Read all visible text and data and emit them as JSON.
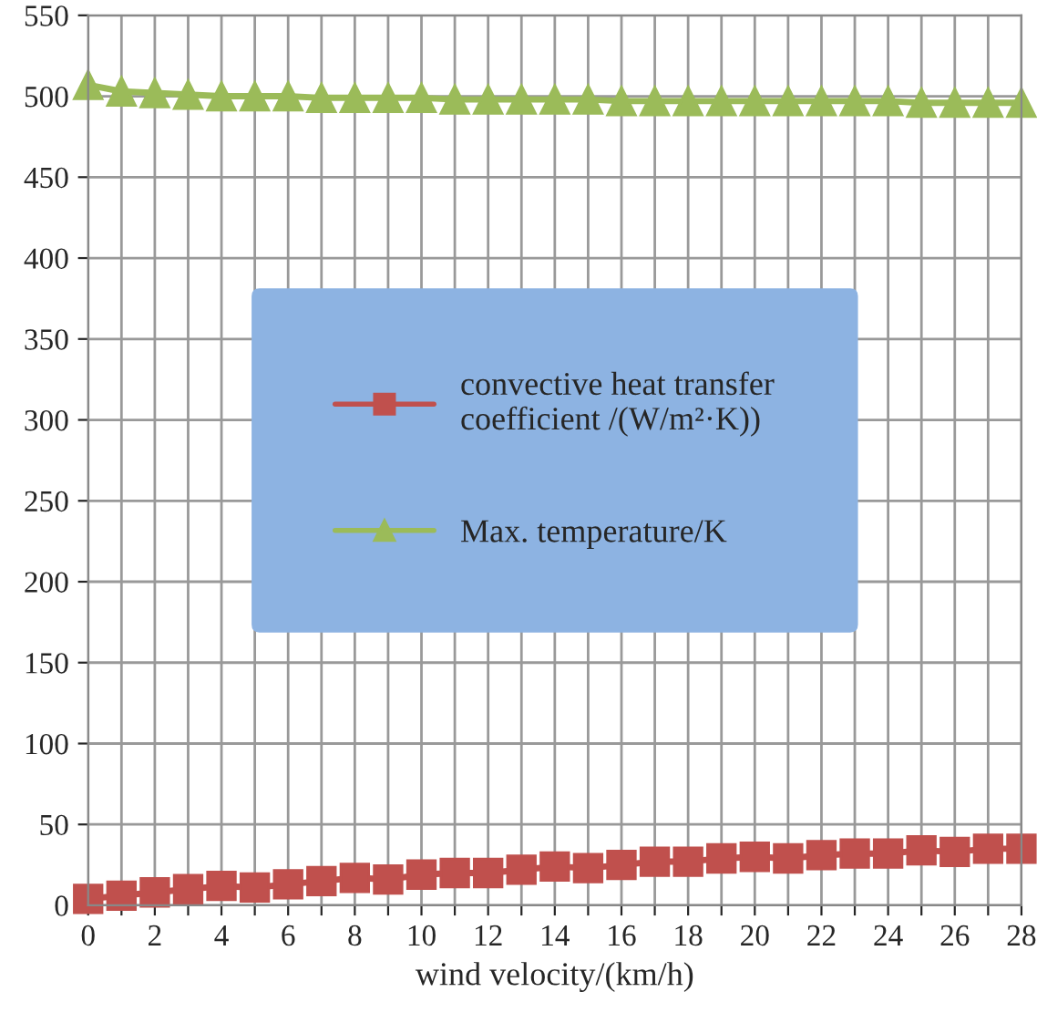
{
  "chart_data": {
    "type": "line",
    "xlabel": "wind velocity/(km/h)",
    "x": [
      0,
      1,
      2,
      3,
      4,
      5,
      6,
      7,
      8,
      9,
      10,
      11,
      12,
      13,
      14,
      15,
      16,
      17,
      18,
      19,
      20,
      21,
      22,
      23,
      24,
      25,
      26,
      27,
      28
    ],
    "series": [
      {
        "name": "convective heat transfer\ncoefficient /(W/m²·K))",
        "color": "#c0504d",
        "marker": "square",
        "values": [
          4,
          6,
          8,
          10,
          12,
          11,
          13,
          15,
          17,
          16,
          19,
          20,
          20,
          22,
          24,
          23,
          25,
          27,
          27,
          29,
          30,
          29,
          31,
          32,
          32,
          34,
          33,
          35,
          35
        ]
      },
      {
        "name": "Max. temperature/K",
        "color": "#9bbb59",
        "marker": "triangle",
        "values": [
          507,
          503,
          502,
          501,
          500,
          500,
          500,
          499,
          499,
          499,
          499,
          498,
          498,
          498,
          498,
          498,
          497,
          497,
          497,
          497,
          497,
          497,
          497,
          497,
          497,
          496,
          496,
          496,
          496
        ]
      }
    ],
    "xlim": [
      0,
      28
    ],
    "xticks": [
      0,
      {
        "value": 1,
        "label": null
      },
      2,
      {
        "value": 3,
        "label": null
      },
      4,
      {
        "value": 5,
        "label": null
      },
      6,
      {
        "value": 7,
        "label": null
      },
      8,
      {
        "value": 9,
        "label": null
      },
      10,
      {
        "value": 11,
        "label": null
      },
      12,
      {
        "value": 13,
        "label": null
      },
      14,
      {
        "value": 15,
        "label": null
      },
      16,
      {
        "value": 17,
        "label": null
      },
      18,
      {
        "value": 19,
        "label": null
      },
      20,
      {
        "value": 21,
        "label": null
      },
      22,
      {
        "value": 23,
        "label": null
      },
      24,
      {
        "value": 25,
        "label": null
      },
      26,
      {
        "value": 27,
        "label": null
      },
      28
    ],
    "ylim": [
      0,
      550
    ],
    "yticks": [
      0,
      50,
      100,
      150,
      200,
      250,
      300,
      350,
      400,
      450,
      500,
      550
    ],
    "grid": true,
    "legend": "center"
  }
}
